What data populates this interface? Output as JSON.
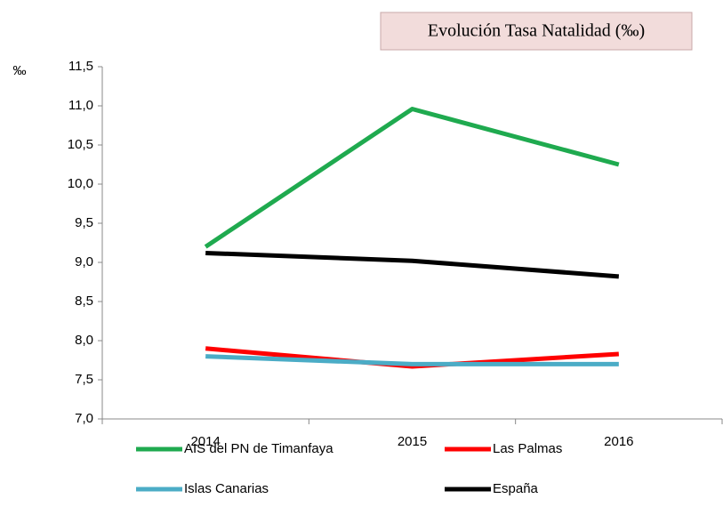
{
  "chart_data": {
    "type": "line",
    "title": "Evolución Tasa Natalidad (‰)",
    "y_label": "‰",
    "categories": [
      "2014",
      "2015",
      "2016"
    ],
    "series": [
      {
        "name": "AIS del PN de Timanfaya",
        "color": "#1faa4f",
        "values": [
          9.2,
          10.96,
          10.25
        ]
      },
      {
        "name": "Las Palmas",
        "color": "#ff0000",
        "values": [
          7.9,
          7.67,
          7.83
        ]
      },
      {
        "name": "Islas Canarias",
        "color": "#4bacc6",
        "values": [
          7.8,
          7.7,
          7.7
        ]
      },
      {
        "name": "España",
        "color": "#000000",
        "values": [
          9.12,
          9.02,
          8.82
        ]
      }
    ],
    "ylim": [
      7.0,
      11.5
    ],
    "yticks": [
      {
        "value": 7.0,
        "label": "7,0"
      },
      {
        "value": 7.5,
        "label": "7,5"
      },
      {
        "value": 8.0,
        "label": "8,0"
      },
      {
        "value": 8.5,
        "label": "8,5"
      },
      {
        "value": 9.0,
        "label": "9,0"
      },
      {
        "value": 9.5,
        "label": "9,5"
      },
      {
        "value": 10.0,
        "label": "10,0"
      },
      {
        "value": 10.5,
        "label": "10,5"
      },
      {
        "value": 11.0,
        "label": "11,0"
      },
      {
        "value": 11.5,
        "label": "11,5"
      }
    ],
    "grid": false
  }
}
